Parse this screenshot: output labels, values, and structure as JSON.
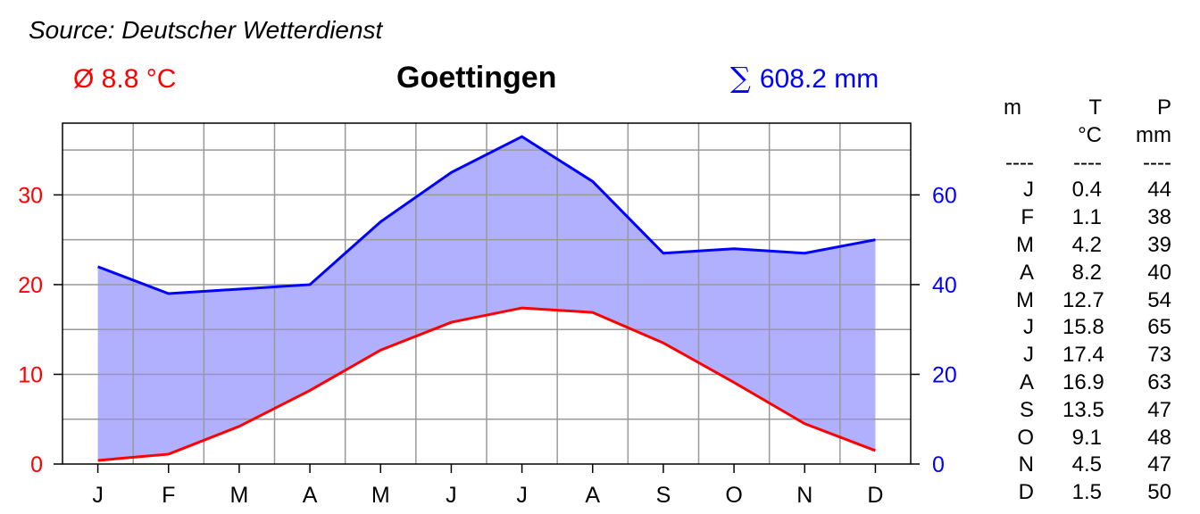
{
  "source": "Source: Deutscher Wetterdienst",
  "title": "Goettingen",
  "mean_temp_label": "Ø 8.8 °C",
  "sum_symbol": "∑",
  "total_precip_label": "608.2 mm",
  "colors": {
    "temperature": "#ff0000",
    "precipitation": "#0000ff",
    "fill": "#b0b0ff",
    "grid": "#999999"
  },
  "table": {
    "headers": {
      "m": [
        "m",
        "",
        "----"
      ],
      "t": [
        "T",
        "°C",
        "----"
      ],
      "p": [
        "P",
        "mm",
        "----"
      ]
    },
    "rows": [
      {
        "m": "J",
        "t": "0.4",
        "p": "44"
      },
      {
        "m": "F",
        "t": "1.1",
        "p": "38"
      },
      {
        "m": "M",
        "t": "4.2",
        "p": "39"
      },
      {
        "m": "A",
        "t": "8.2",
        "p": "40"
      },
      {
        "m": "M",
        "t": "12.7",
        "p": "54"
      },
      {
        "m": "J",
        "t": "15.8",
        "p": "65"
      },
      {
        "m": "J",
        "t": "17.4",
        "p": "73"
      },
      {
        "m": "A",
        "t": "16.9",
        "p": "63"
      },
      {
        "m": "S",
        "t": "13.5",
        "p": "47"
      },
      {
        "m": "O",
        "t": "9.1",
        "p": "48"
      },
      {
        "m": "N",
        "t": "4.5",
        "p": "47"
      },
      {
        "m": "D",
        "t": "1.5",
        "p": "50"
      }
    ]
  },
  "chart_data": {
    "type": "line",
    "categories": [
      "J",
      "F",
      "M",
      "A",
      "M",
      "J",
      "J",
      "A",
      "S",
      "O",
      "N",
      "D"
    ],
    "series": [
      {
        "name": "T",
        "unit": "°C",
        "axis": "left",
        "color": "#ff0000",
        "values": [
          0.4,
          1.1,
          4.2,
          8.2,
          12.7,
          15.8,
          17.4,
          16.9,
          13.5,
          9.1,
          4.5,
          1.5
        ]
      },
      {
        "name": "P",
        "unit": "mm",
        "axis": "right",
        "color": "#0000ff",
        "filled": true,
        "values": [
          44,
          38,
          39,
          40,
          54,
          65,
          73,
          63,
          47,
          48,
          47,
          50
        ]
      }
    ],
    "left_axis": {
      "ticks": [
        0,
        10,
        20,
        30
      ]
    },
    "right_axis": {
      "ticks": [
        0,
        20,
        40,
        60
      ]
    },
    "ylim_left": [
      0,
      38
    ],
    "ylim_right": [
      0,
      76
    ],
    "grid": true
  }
}
